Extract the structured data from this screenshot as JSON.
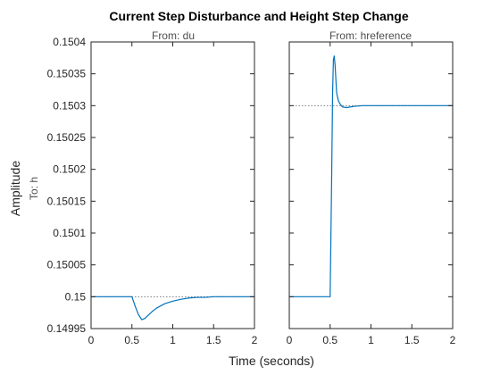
{
  "chart_data": {
    "type": "line",
    "title": "Current Step Disturbance and Height Step Change",
    "xlabel": "Time (seconds)",
    "ylabel": "Amplitude",
    "output_label": "To: h",
    "xlim": [
      0,
      2
    ],
    "ylim": [
      0.14995,
      0.1504
    ],
    "x_ticks": [
      0,
      0.5,
      1,
      1.5,
      2
    ],
    "x_tick_labels": [
      "0",
      "0.5",
      "1",
      "1.5",
      "2"
    ],
    "y_ticks": [
      0.14995,
      0.15,
      0.15005,
      0.1501,
      0.15015,
      0.1502,
      0.15025,
      0.1503,
      0.15035,
      0.1504
    ],
    "y_tick_labels": [
      "0.14995",
      "0.15",
      "0.15005",
      "0.1501",
      "0.15015",
      "0.1502",
      "0.15025",
      "0.1503",
      "0.15035",
      "0.1504"
    ],
    "grid": false,
    "line_color": "#0072bd",
    "reference_color": "#666666",
    "panels": [
      {
        "name": "du",
        "title": "From: du",
        "reference": 0.15,
        "x": [
          0,
          0.5,
          0.54,
          0.58,
          0.62,
          0.66,
          0.7,
          0.75,
          0.8,
          0.9,
          1.0,
          1.1,
          1.2,
          1.3,
          1.4,
          1.5,
          1.6,
          1.8,
          2.0
        ],
        "y": [
          0.15,
          0.15,
          0.149985,
          0.149972,
          0.149964,
          0.149966,
          0.149971,
          0.149977,
          0.149982,
          0.149989,
          0.149993,
          0.149996,
          0.149998,
          0.149999,
          0.149999,
          0.15,
          0.15,
          0.15,
          0.15
        ]
      },
      {
        "name": "href",
        "title": "From: hreference",
        "reference": 0.1503,
        "x": [
          0,
          0.5,
          0.51,
          0.52,
          0.53,
          0.54,
          0.55,
          0.56,
          0.57,
          0.58,
          0.6,
          0.62,
          0.65,
          0.7,
          0.75,
          0.8,
          0.9,
          1.0,
          1.1,
          2.0
        ],
        "y": [
          0.15,
          0.15,
          0.1501,
          0.1502,
          0.15032,
          0.150372,
          0.150378,
          0.150365,
          0.150342,
          0.15032,
          0.150308,
          0.150303,
          0.150298,
          0.150297,
          0.150298,
          0.150299,
          0.1503,
          0.1503,
          0.1503,
          0.1503
        ]
      }
    ]
  }
}
